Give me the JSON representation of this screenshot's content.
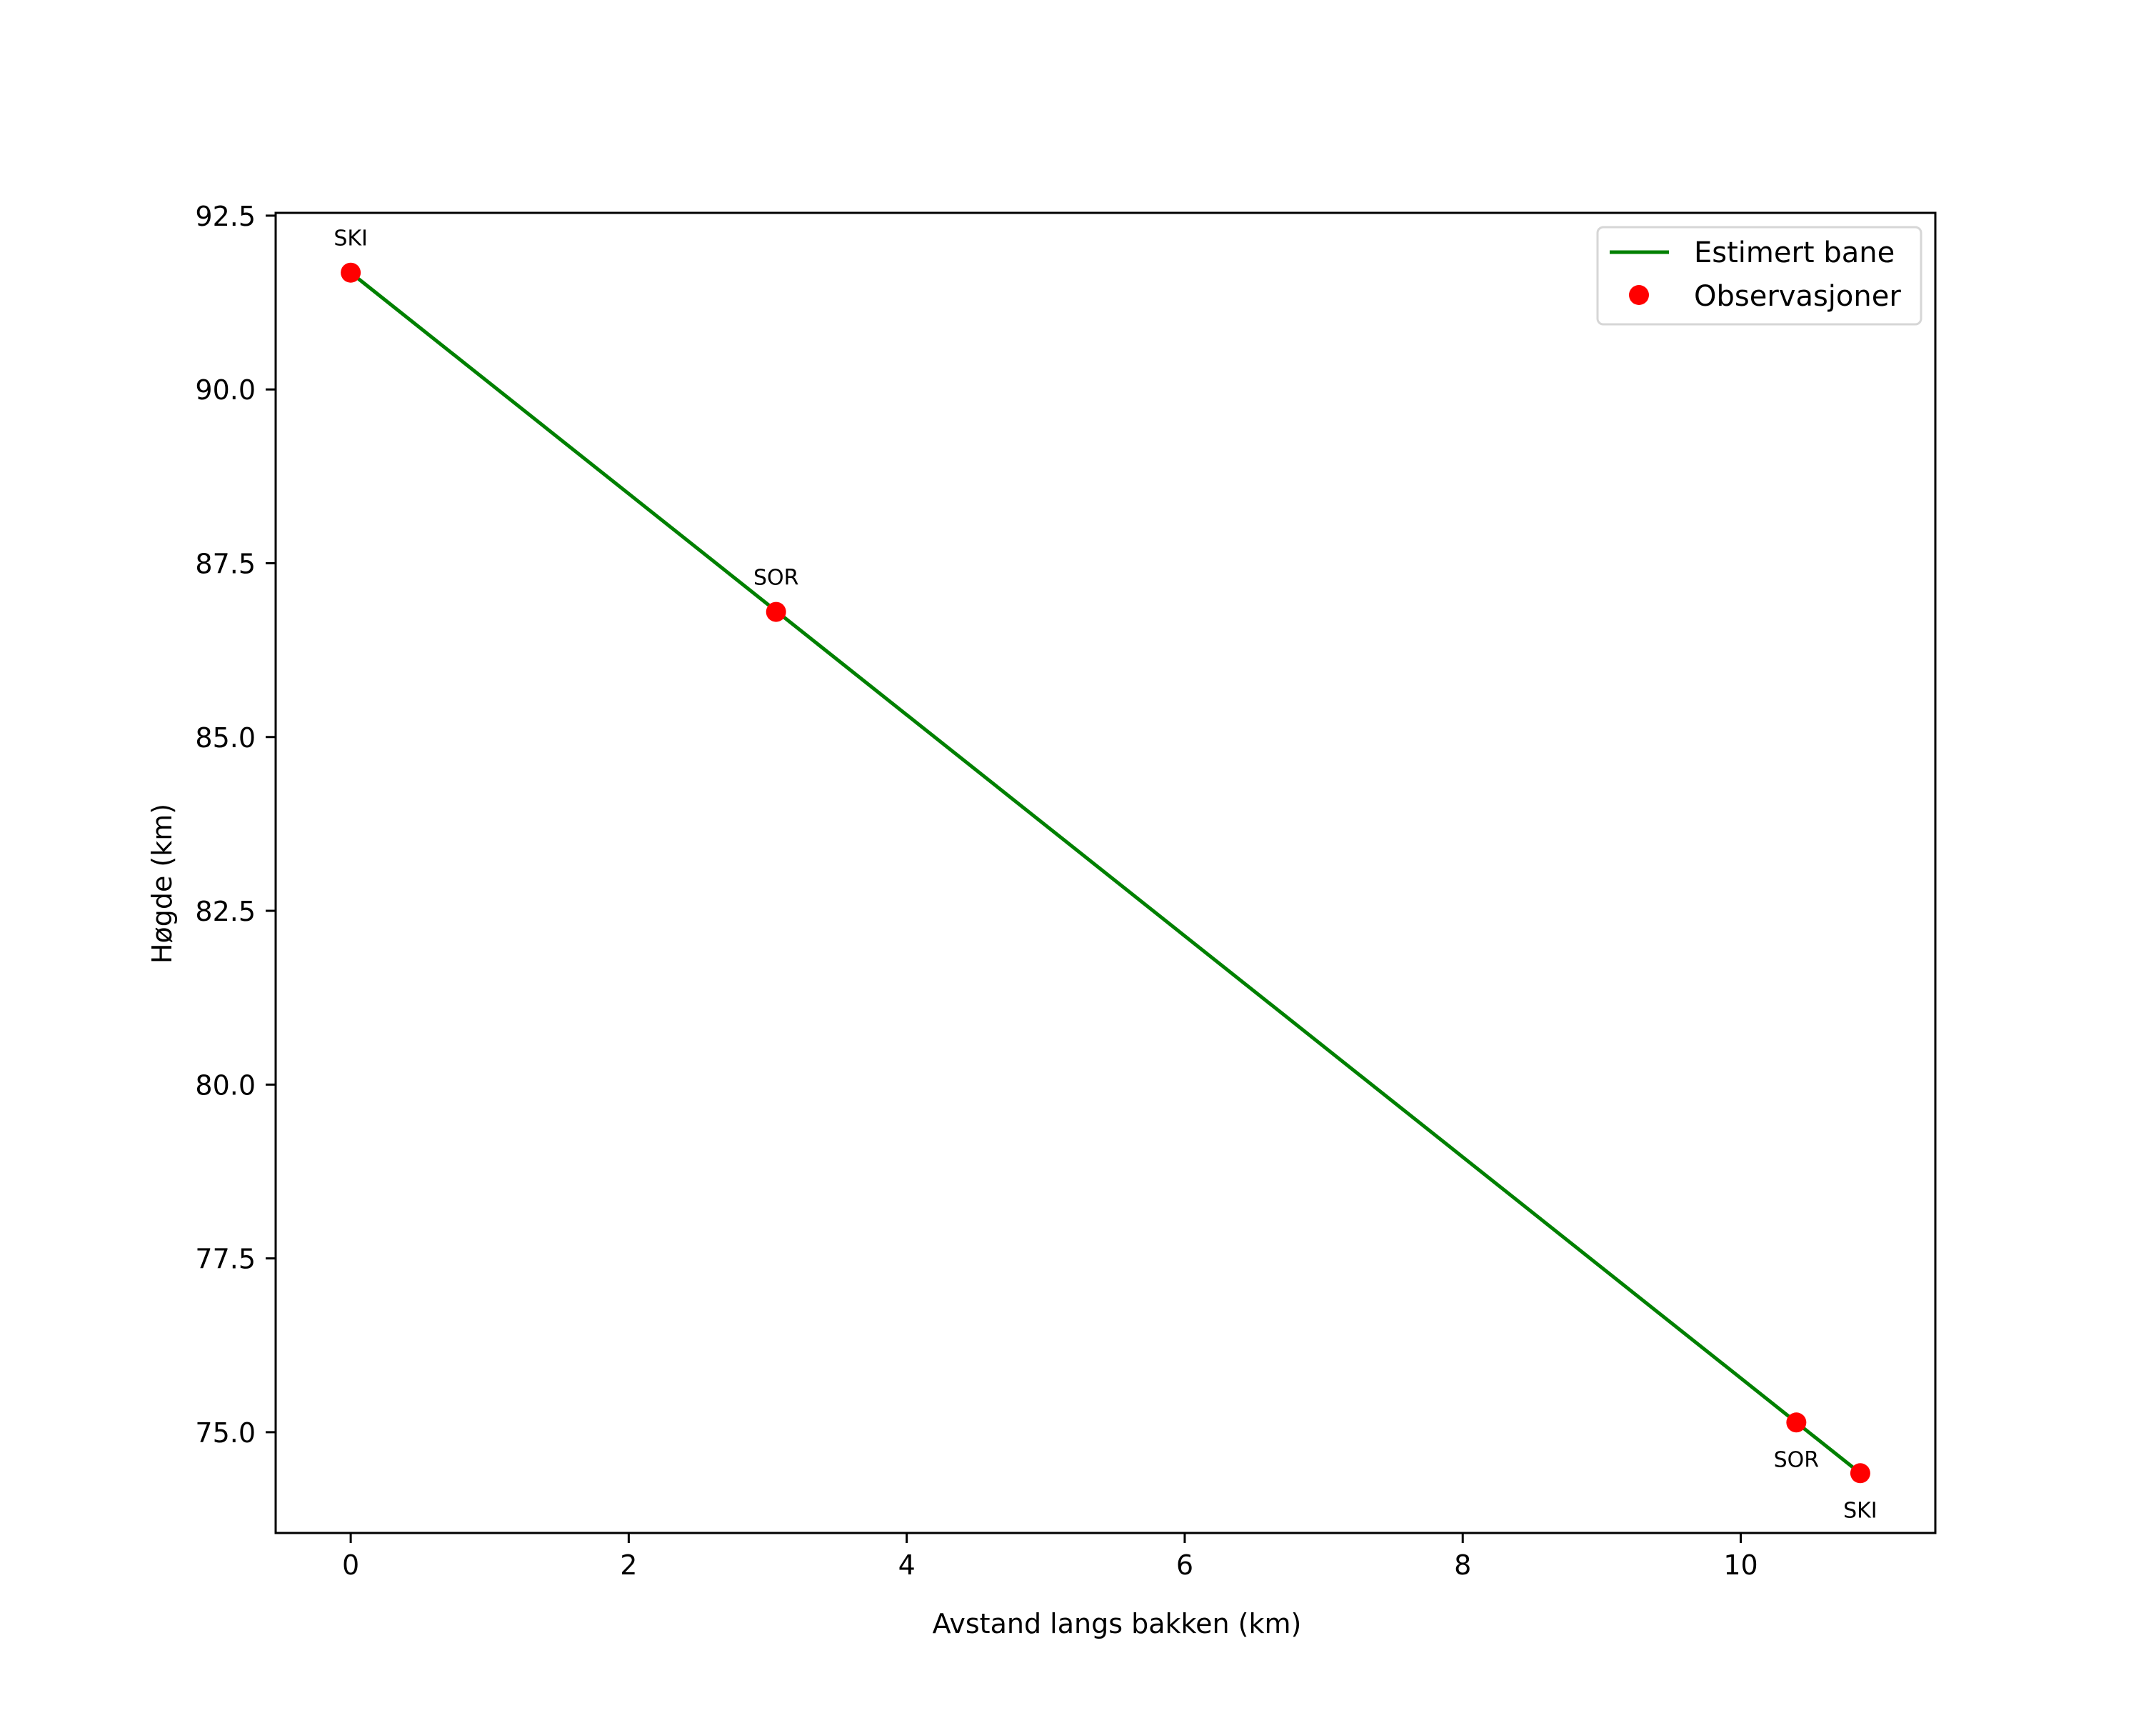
{
  "chart_data": {
    "type": "line",
    "title": "",
    "xlabel": "Avstand langs bakken (km)",
    "ylabel": "Høgde (km)",
    "xlim": [
      -0.54,
      11.4
    ],
    "ylim": [
      73.55,
      92.54
    ],
    "xticks": [
      0,
      2,
      4,
      6,
      8,
      10
    ],
    "xtick_labels": [
      "0",
      "2",
      "4",
      "6",
      "8",
      "10"
    ],
    "yticks": [
      75.0,
      77.5,
      80.0,
      82.5,
      85.0,
      87.5,
      90.0,
      92.5
    ],
    "ytick_labels": [
      "75.0",
      "77.5",
      "80.0",
      "82.5",
      "85.0",
      "87.5",
      "90.0",
      "92.5"
    ],
    "grid": false,
    "legend_position": "upper right",
    "series": [
      {
        "name": "Estimert bane",
        "kind": "line",
        "color": "#008000",
        "x": [
          0.0,
          10.86
        ],
        "y": [
          91.68,
          74.41
        ]
      },
      {
        "name": "Observasjoner",
        "kind": "scatter",
        "color": "#ff0000",
        "x": [
          0.0,
          3.06,
          10.4,
          10.86
        ],
        "y": [
          91.68,
          86.8,
          75.14,
          74.41
        ],
        "labels": [
          "SKI",
          "SOR",
          "SOR",
          "SKI"
        ],
        "label_positions": [
          "above",
          "above",
          "below",
          "below"
        ]
      }
    ]
  },
  "legend": {
    "items": [
      {
        "label": "Estimert bane",
        "marker": "line",
        "color": "#008000"
      },
      {
        "label": "Observasjoner",
        "marker": "dot",
        "color": "#ff0000"
      }
    ]
  },
  "axes": {
    "xlabel": "Avstand langs bakken (km)",
    "ylabel": "Høgde (km)"
  }
}
